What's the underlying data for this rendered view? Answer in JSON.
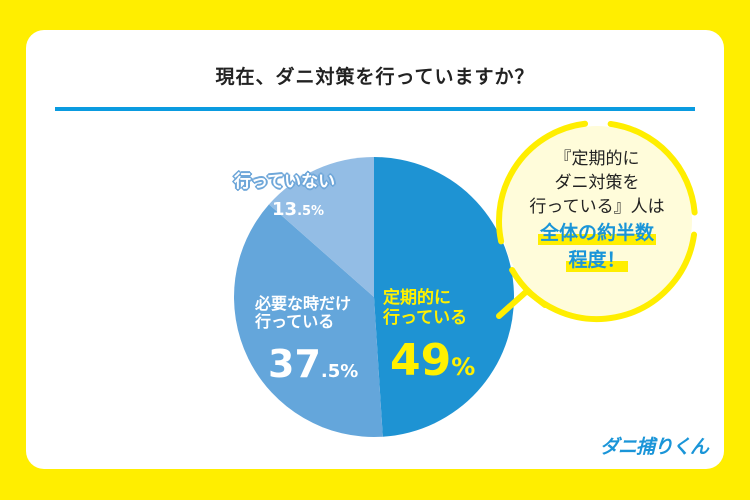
{
  "header": {
    "title": "現在、ダニ対策を行っていますか？"
  },
  "colors": {
    "background": "#FFEE00",
    "card": "#FFFFFF",
    "rule": "#0A9BE0",
    "slice_regularly": "#1E93D3",
    "slice_when_needed": "#64A6DB",
    "slice_not_doing": "#93BDE5",
    "highlight_text": "#FFF100",
    "bubble_fill": "#FFFCDA",
    "bubble_ring": "#FFEE00",
    "accent_blue": "#1A95D8"
  },
  "chart_data": {
    "type": "pie",
    "title": "現在、ダニ対策を行っていますか？",
    "categories": [
      "定期的に行っている",
      "必要な時だけ行っている",
      "行っていない"
    ],
    "values": [
      49,
      37.5,
      13.5
    ],
    "unit": "%",
    "start_angle_deg": 0,
    "direction": "clockwise",
    "legend": "none (labels inside slices)"
  },
  "labels": {
    "regularly": {
      "line1": "定期的に",
      "line2": "行っている",
      "pct_main": "49",
      "pct_unit": "%"
    },
    "when_needed": {
      "line1": "必要な時だけ",
      "line2": "行っている",
      "pct_main": "37",
      "pct_dec": ".5%"
    },
    "not_doing": {
      "line1": "行っていない",
      "pct_main": "13",
      "pct_dec": ".5%"
    }
  },
  "callout": {
    "line1": "『定期的に",
    "line2": "ダニ対策を",
    "line3": "行っている』人は",
    "highlight1": "全体の約半数",
    "highlight2": "程度！"
  },
  "brand": {
    "logo_text": "ダニ捕りくん"
  }
}
